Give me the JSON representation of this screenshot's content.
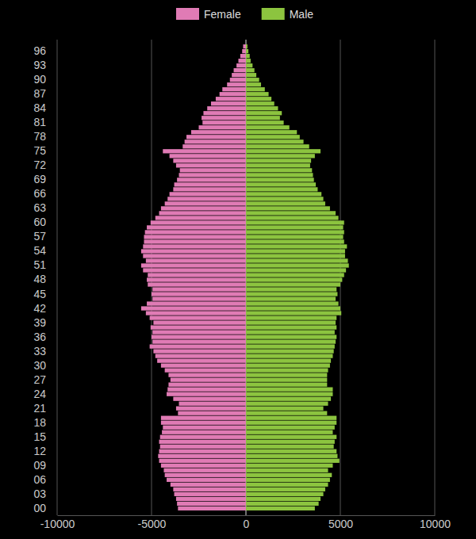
{
  "chart_data": {
    "type": "bar",
    "orientation": "horizontal",
    "grid": true,
    "legend": "top",
    "categories": [
      "00",
      null,
      null,
      "03",
      null,
      null,
      "06",
      null,
      null,
      "09",
      null,
      null,
      "12",
      null,
      null,
      "15",
      null,
      null,
      "18",
      null,
      null,
      "21",
      null,
      null,
      "24",
      null,
      null,
      "27",
      null,
      null,
      "30",
      null,
      null,
      "33",
      null,
      null,
      "36",
      null,
      null,
      "39",
      null,
      null,
      "42",
      null,
      null,
      "45",
      null,
      null,
      "48",
      null,
      null,
      "51",
      null,
      null,
      "54",
      null,
      null,
      "57",
      null,
      null,
      "60",
      null,
      null,
      "63",
      null,
      null,
      "66",
      null,
      null,
      "69",
      null,
      null,
      "72",
      null,
      null,
      "75",
      null,
      null,
      "78",
      null,
      null,
      "81",
      null,
      null,
      "84",
      null,
      null,
      "87",
      null,
      null,
      "90",
      null,
      null,
      "93",
      null,
      null,
      "96",
      null
    ],
    "xlim": [
      -10000,
      10000
    ],
    "xticks": [
      -10000,
      -5000,
      0,
      5000,
      10000
    ],
    "series": [
      {
        "name": "Female",
        "color": "#e07bb5",
        "values": [
          -3600,
          -3650,
          -3700,
          -3800,
          -3850,
          -4000,
          -4200,
          -4300,
          -4350,
          -4500,
          -4600,
          -4650,
          -4600,
          -4550,
          -4600,
          -4550,
          -4450,
          -4400,
          -4500,
          -4500,
          -3600,
          -3700,
          -3550,
          -3850,
          -4200,
          -4150,
          -4100,
          -4000,
          -4100,
          -4300,
          -4500,
          -4700,
          -4800,
          -4900,
          -5100,
          -4950,
          -5000,
          -4950,
          -5050,
          -4900,
          -5100,
          -5300,
          -5550,
          -5250,
          -4950,
          -5000,
          -4950,
          -5200,
          -5250,
          -5200,
          -5450,
          -5550,
          -5300,
          -5450,
          -5550,
          -5450,
          -5400,
          -5400,
          -5350,
          -5250,
          -5050,
          -4800,
          -4600,
          -4500,
          -4300,
          -4150,
          -4050,
          -3850,
          -3800,
          -3650,
          -3550,
          -3500,
          -3700,
          -3850,
          -4050,
          -4400,
          -3350,
          -3250,
          -3150,
          -2900,
          -2500,
          -2300,
          -2350,
          -2250,
          -2050,
          -1850,
          -1600,
          -1400,
          -1250,
          -1000,
          -850,
          -750,
          -650,
          -500,
          -400,
          -300,
          -200,
          -150
        ]
      },
      {
        "name": "Male",
        "color": "#8cc43f",
        "values": [
          3650,
          3850,
          3950,
          4100,
          4200,
          4350,
          4450,
          4550,
          4350,
          4600,
          4950,
          4850,
          4800,
          4650,
          4700,
          4800,
          4600,
          4700,
          4800,
          4800,
          4300,
          4100,
          4350,
          4500,
          4600,
          4600,
          4300,
          4300,
          4300,
          4350,
          4450,
          4500,
          4600,
          4650,
          4700,
          4750,
          4800,
          4700,
          4800,
          4750,
          4800,
          5050,
          5000,
          4900,
          4750,
          4850,
          4800,
          5000,
          5100,
          5200,
          5300,
          5450,
          5400,
          5250,
          5250,
          5350,
          5200,
          5150,
          5200,
          5150,
          5200,
          4900,
          4750,
          4450,
          4200,
          4100,
          4000,
          3800,
          3700,
          3600,
          3550,
          3500,
          3400,
          3450,
          3650,
          3950,
          3350,
          3050,
          2850,
          2700,
          2300,
          2000,
          1800,
          1900,
          1700,
          1500,
          1350,
          1200,
          1000,
          800,
          700,
          550,
          450,
          350,
          250,
          200,
          130,
          80
        ]
      }
    ]
  }
}
